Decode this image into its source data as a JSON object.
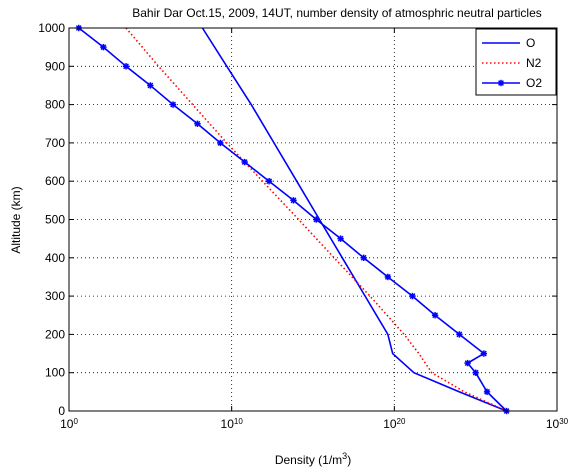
{
  "chart_data": {
    "type": "line",
    "title": "Bahir Dar Oct.15, 2009, 14UT, number density of atmosphric neutral particles",
    "xlabel": "Density (1/m",
    "xlabel_sup": "3",
    "xlabel_end": ")",
    "ylabel": "Altitude (km)",
    "xscale": "log",
    "xlim": [
      1,
      1e+30
    ],
    "ylim": [
      0,
      1000
    ],
    "grid": true,
    "legend_position": "top-right",
    "x_ticks": [
      {
        "base": "10",
        "exp": "0"
      },
      {
        "base": "10",
        "exp": "10"
      },
      {
        "base": "10",
        "exp": "20"
      },
      {
        "base": "10",
        "exp": "30"
      }
    ],
    "y_ticks": [
      "0",
      "100",
      "200",
      "300",
      "400",
      "500",
      "600",
      "700",
      "800",
      "900",
      "1000"
    ],
    "series": [
      {
        "name": "O",
        "color": "#0000ff",
        "style": "solid",
        "marker": "none",
        "points": [
          [
            160000000.0,
            1000
          ],
          [
            5000000000.0,
            900
          ],
          [
            160000000000.0,
            800
          ],
          [
            4000000000000.0,
            700
          ],
          [
            100000000000000.0,
            600
          ],
          [
            2500000000000000.0,
            500
          ],
          [
            6.3e+16,
            400
          ],
          [
            1.6e+18,
            300
          ],
          [
            4e+19,
            200
          ],
          [
            7.9e+19,
            150
          ],
          [
            1.6e+21,
            100
          ],
          [
            1e+24,
            50
          ],
          [
            7.9e+26,
            0
          ]
        ]
      },
      {
        "name": "N2",
        "color": "#ff0000",
        "style": "dotted",
        "marker": "none",
        "points": [
          [
            3200.0,
            1000
          ],
          [
            320000.0,
            900
          ],
          [
            40000000.0,
            800
          ],
          [
            5000000000.0,
            700
          ],
          [
            790000000000.0,
            600
          ],
          [
            130000000000000.0,
            500
          ],
          [
            2e+16,
            400
          ],
          [
            3.2e+18,
            300
          ],
          [
            4e+20,
            200
          ],
          [
            3.2e+21,
            150
          ],
          [
            2e+22,
            100
          ],
          [
            2e+24,
            50
          ],
          [
            7.9e+26,
            0
          ]
        ]
      },
      {
        "name": "O2",
        "color": "#0000ff",
        "style": "solid",
        "marker": "asterisk",
        "points": [
          [
            4.0,
            1000
          ],
          [
            130.0,
            950
          ],
          [
            3200.0,
            900
          ],
          [
            100000.0,
            850
          ],
          [
            2500000.0,
            800
          ],
          [
            79000000.0,
            750
          ],
          [
            2000000000.0,
            700
          ],
          [
            63000000000.0,
            650
          ],
          [
            2000000000000.0,
            600
          ],
          [
            63000000000000.0,
            550
          ],
          [
            1600000000000000.0,
            500
          ],
          [
            5e+16,
            450
          ],
          [
            1.3e+18,
            400
          ],
          [
            4e+19,
            350
          ],
          [
            1.3e+21,
            300
          ],
          [
            3.2e+22,
            250
          ],
          [
            1e+24,
            200
          ],
          [
            3.2e+25,
            150
          ],
          [
            3.2e+24,
            125
          ],
          [
            1e+25,
            100
          ],
          [
            5e+25,
            50
          ],
          [
            7.9e+26,
            0
          ]
        ]
      }
    ]
  }
}
